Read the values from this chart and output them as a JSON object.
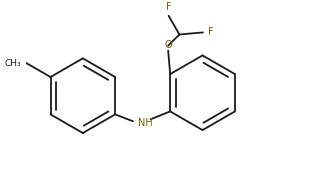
{
  "bg_color": "#ffffff",
  "line_color": "#1a1a1a",
  "atom_color": "#1a1a1a",
  "N_color": "#7a6000",
  "O_color": "#7a6000",
  "F_color": "#7a6000",
  "bond_lw": 1.3,
  "dbo": 0.038,
  "figsize": [
    3.22,
    1.91
  ],
  "dpi": 100,
  "xlim": [
    0.0,
    3.22
  ],
  "ylim": [
    0.0,
    1.91
  ]
}
